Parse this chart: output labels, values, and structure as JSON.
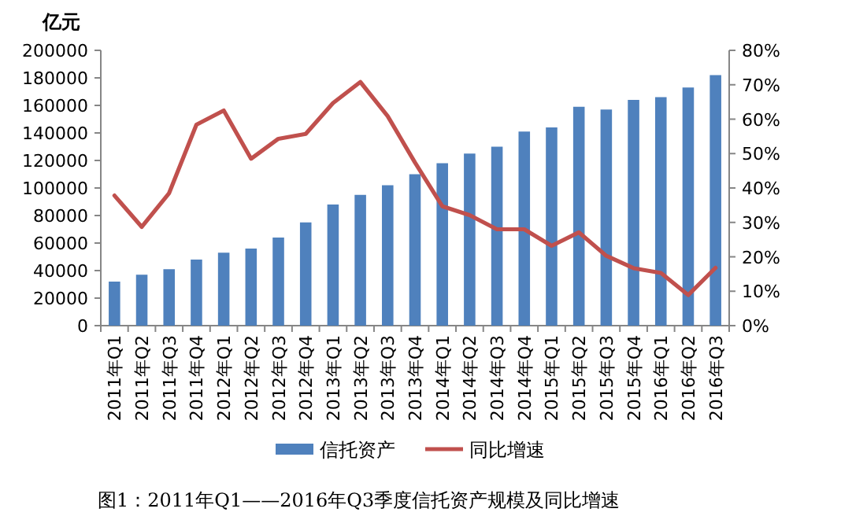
{
  "chart_data": {
    "type": "bar",
    "ylabel": "亿元",
    "categories": [
      "2011年Q1",
      "2011年Q2",
      "2011年Q3",
      "2011年Q4",
      "2012年Q1",
      "2012年Q2",
      "2012年Q3",
      "2012年Q4",
      "2013年Q1",
      "2013年Q2",
      "2013年Q3",
      "2013年Q4",
      "2014年Q1",
      "2014年Q2",
      "2014年Q3",
      "2014年Q4",
      "2015年Q1",
      "2015年Q2",
      "2015年Q3",
      "2015年Q4",
      "2016年Q1",
      "2016年Q2",
      "2016年Q3"
    ],
    "series": [
      {
        "name": "信托资产",
        "color": "#4f81bd",
        "values": [
          32000,
          37000,
          41000,
          48000,
          53000,
          56000,
          64000,
          75000,
          88000,
          95000,
          102000,
          110000,
          118000,
          125000,
          130000,
          141000,
          144000,
          159000,
          157000,
          164000,
          166000,
          173000,
          182000
        ]
      },
      {
        "name": "同比增速",
        "type": "line",
        "axis": "y2",
        "color": "#c0504d",
        "values": [
          37.8,
          28.7,
          38.5,
          58.4,
          62.5,
          48.5,
          54.3,
          55.7,
          64.7,
          70.8,
          60.9,
          47.4,
          34.7,
          32.1,
          28,
          28,
          23.2,
          27.1,
          20.3,
          16.7,
          15.3,
          8.9,
          16.8
        ]
      }
    ],
    "ylim": [
      0,
      200000
    ],
    "yticks": [
      0,
      20000,
      40000,
      60000,
      80000,
      100000,
      120000,
      140000,
      160000,
      180000,
      200000
    ],
    "y2lim": [
      0,
      80
    ],
    "y2ticks": [
      {
        "value": 0,
        "label": "0%"
      },
      {
        "value": 10,
        "label": "10%"
      },
      {
        "value": 20,
        "label": "20%"
      },
      {
        "value": 30,
        "label": "30%"
      },
      {
        "value": 40,
        "label": "40%"
      },
      {
        "value": 50,
        "label": "50%"
      },
      {
        "value": 60,
        "label": "60%"
      },
      {
        "value": 70,
        "label": "70%"
      },
      {
        "value": 80,
        "label": "80%"
      }
    ],
    "grid": false,
    "legend": "bottom",
    "marker": "none",
    "annotations": [
      "图1：2011年Q1——2016年Q3季度信托资产规模及同比增速"
    ]
  }
}
